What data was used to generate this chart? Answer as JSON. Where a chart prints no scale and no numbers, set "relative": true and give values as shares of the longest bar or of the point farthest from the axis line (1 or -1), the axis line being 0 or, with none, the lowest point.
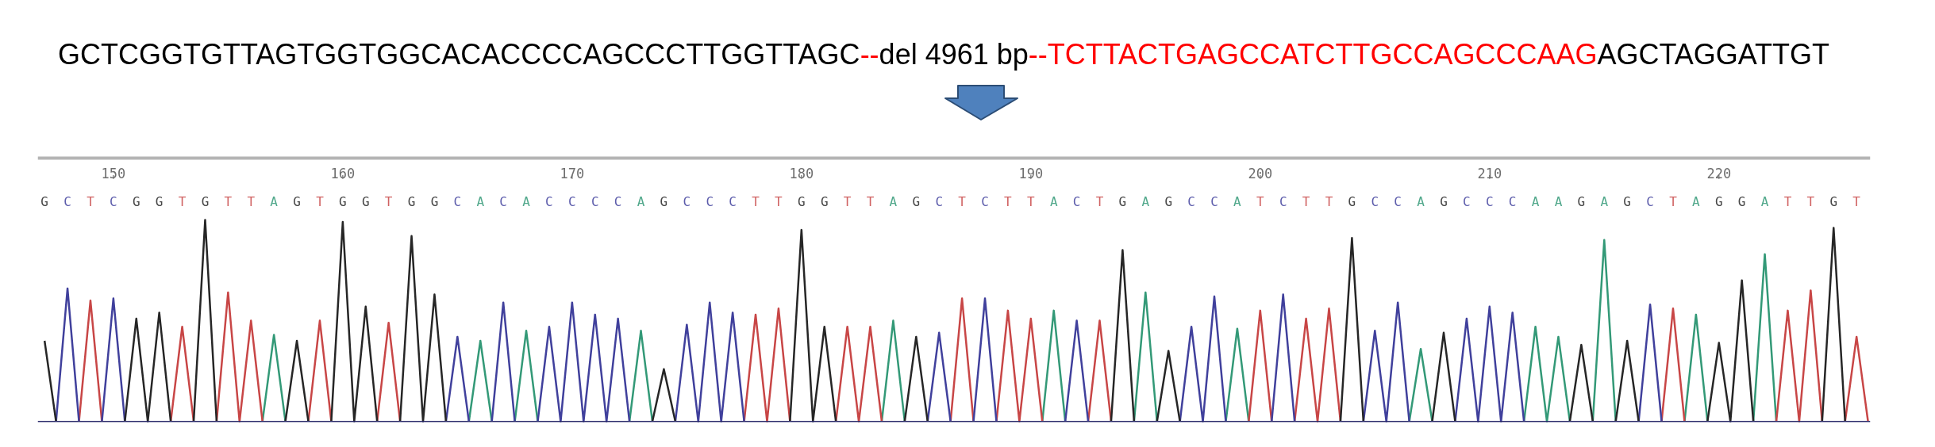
{
  "chart_data": {
    "type": "line",
    "relative": true,
    "annotations": [
      "GCTCGGTGTTAGTGGTGGCACACCCCAGCCCTTGGTTAGC",
      "--",
      "del 4961 bp",
      "--TCTTACTGAGCCATCTTGCCAGCCCAAG",
      "AGCTAGGATTGT"
    ],
    "categories": [
      "G",
      null,
      "C",
      null,
      "T",
      null,
      "C",
      null,
      "G",
      null,
      "G",
      null,
      "T",
      null,
      "G",
      null,
      "T",
      null,
      "T",
      null,
      "A",
      null,
      "G",
      null,
      "T",
      null,
      "G",
      null,
      "G",
      null,
      "T",
      null,
      "G",
      null,
      "G",
      null,
      "C",
      null,
      "A",
      null,
      "C",
      null,
      "A",
      null,
      "C",
      null,
      "C",
      null,
      "C",
      null,
      "C",
      null,
      "A",
      null,
      "G",
      null,
      "C",
      null,
      "C",
      null,
      "C",
      null,
      "T",
      null,
      "T",
      null,
      "G",
      null,
      "G",
      null,
      "T",
      null,
      "T",
      null,
      "A",
      null,
      "G",
      null,
      "C",
      null,
      "T",
      null,
      "C",
      null,
      "T",
      null,
      "T",
      null,
      "A",
      null,
      "C",
      null,
      "T",
      null,
      "G",
      null,
      "A",
      null,
      "G",
      null,
      "C",
      null,
      "C",
      null,
      "A",
      null,
      "T",
      null,
      "C",
      null,
      "T",
      null,
      "T",
      null,
      "G",
      null,
      "C",
      null,
      "C",
      null,
      "A",
      null,
      "G",
      null,
      "C",
      null,
      "C",
      null,
      "C",
      null,
      "A",
      null,
      "A",
      null,
      "G",
      null,
      "A",
      null,
      "G",
      null,
      "C",
      null,
      "T",
      null,
      "A",
      null,
      "G",
      null,
      "G",
      null,
      "A",
      null,
      "T",
      null,
      "T",
      null,
      "G",
      null,
      "T",
      null
    ],
    "x2lim": [
      146.7,
      226.6
    ],
    "x2ticks": [
      150,
      160,
      170,
      180,
      190,
      200,
      210,
      220
    ],
    "series": [
      {
        "color": "#339977",
        "values": [
          null,
          null,
          null,
          null,
          null,
          null,
          null,
          null,
          null,
          null,
          null,
          null,
          null,
          null,
          null,
          null,
          null,
          null,
          null,
          0,
          0.43,
          0,
          null,
          null,
          null,
          null,
          null,
          null,
          null,
          null,
          null,
          null,
          null,
          null,
          null,
          null,
          null,
          0,
          0.4,
          0,
          null,
          0,
          0.45,
          0,
          null,
          null,
          null,
          null,
          null,
          null,
          null,
          0,
          0.45,
          0,
          null,
          null,
          null,
          null,
          null,
          null,
          null,
          null,
          null,
          null,
          null,
          null,
          null,
          null,
          null,
          null,
          null,
          null,
          null,
          0,
          0.5,
          0,
          null,
          null,
          null,
          null,
          null,
          null,
          null,
          null,
          null,
          null,
          null,
          0,
          0.55,
          0,
          null,
          null,
          null,
          null,
          null,
          0,
          0.64,
          0,
          null,
          null,
          null,
          null,
          null,
          0,
          0.46,
          0,
          null,
          null,
          null,
          null,
          null,
          null,
          null,
          null,
          null,
          null,
          null,
          null,
          null,
          0,
          0.36,
          0,
          null,
          null,
          null,
          null,
          null,
          null,
          null,
          0,
          0.47,
          0,
          0.42,
          0,
          null,
          0,
          0.9,
          0,
          null,
          null,
          null,
          null,
          null,
          0,
          0.53,
          0,
          null,
          null,
          null,
          0,
          0.83,
          0,
          null,
          null,
          null,
          null,
          null,
          null,
          null,
          null
        ]
      },
      {
        "color": "#c84646",
        "values": [
          null,
          null,
          null,
          0,
          0.6,
          0,
          null,
          null,
          null,
          null,
          null,
          0,
          0.47,
          0,
          null,
          0,
          0.64,
          0,
          0.5,
          0,
          null,
          null,
          null,
          0,
          0.5,
          0,
          null,
          null,
          null,
          0,
          0.49,
          0,
          null,
          null,
          null,
          null,
          null,
          null,
          null,
          null,
          null,
          null,
          null,
          null,
          null,
          null,
          null,
          null,
          null,
          null,
          null,
          null,
          null,
          null,
          null,
          null,
          null,
          null,
          null,
          null,
          null,
          0,
          0.53,
          0,
          0.56,
          0,
          null,
          null,
          null,
          0,
          0.47,
          0,
          0.47,
          0,
          null,
          null,
          null,
          null,
          null,
          0,
          0.61,
          0,
          null,
          0,
          0.55,
          0,
          0.51,
          0,
          null,
          null,
          null,
          0,
          0.5,
          0,
          null,
          null,
          null,
          null,
          null,
          null,
          null,
          null,
          null,
          null,
          null,
          0,
          0.55,
          0,
          null,
          0,
          0.51,
          0,
          0.56,
          0,
          null,
          null,
          null,
          null,
          null,
          null,
          null,
          null,
          null,
          null,
          null,
          null,
          null,
          null,
          null,
          null,
          null,
          null,
          null,
          null,
          null,
          null,
          null,
          null,
          null,
          null,
          null,
          0,
          0.56,
          0,
          null,
          null,
          null,
          null,
          null,
          null,
          null,
          0,
          0.55,
          0,
          0.65,
          0,
          null,
          0,
          0.42,
          0
        ]
      },
      {
        "color": "#40409c",
        "values": [
          null,
          0,
          0.66,
          0,
          null,
          0,
          0.61,
          0,
          null,
          null,
          null,
          null,
          null,
          null,
          null,
          null,
          null,
          null,
          null,
          null,
          null,
          null,
          null,
          null,
          null,
          null,
          null,
          null,
          null,
          null,
          null,
          null,
          null,
          null,
          null,
          0,
          0.42,
          0,
          null,
          0,
          0.59,
          0,
          null,
          0,
          0.47,
          0,
          0.59,
          0,
          0.53,
          0,
          0.51,
          0,
          null,
          null,
          null,
          0,
          0.48,
          0,
          0.59,
          0,
          0.54,
          0,
          null,
          null,
          null,
          null,
          null,
          null,
          null,
          null,
          null,
          null,
          null,
          null,
          null,
          null,
          null,
          0,
          0.44,
          0,
          null,
          0,
          0.61,
          0,
          null,
          null,
          null,
          null,
          null,
          0,
          0.5,
          0,
          null,
          null,
          null,
          null,
          null,
          null,
          null,
          0,
          0.47,
          0,
          0.62,
          0,
          null,
          null,
          null,
          0,
          0.63,
          0,
          null,
          null,
          null,
          null,
          null,
          0,
          0.45,
          0,
          0.59,
          0,
          null,
          null,
          null,
          0,
          0.51,
          0,
          0.57,
          0,
          0.54,
          0,
          null,
          null,
          null,
          null,
          null,
          null,
          null,
          null,
          null,
          0,
          0.58,
          0,
          null,
          null,
          null,
          null,
          null,
          null,
          null,
          null,
          null,
          null,
          null,
          null,
          null,
          null,
          null,
          null,
          null,
          null
        ]
      },
      {
        "color": "#262626",
        "values": [
          0.4,
          0,
          null,
          null,
          null,
          null,
          null,
          0,
          0.51,
          0,
          0.54,
          0,
          null,
          0,
          1.0,
          0,
          null,
          null,
          null,
          null,
          null,
          0,
          0.4,
          0,
          null,
          0,
          0.99,
          0,
          0.57,
          0,
          null,
          0,
          0.92,
          0,
          0.63,
          0,
          null,
          null,
          null,
          null,
          null,
          null,
          null,
          null,
          null,
          null,
          null,
          null,
          null,
          null,
          null,
          null,
          null,
          0,
          0.26,
          0,
          null,
          null,
          null,
          null,
          null,
          null,
          null,
          null,
          null,
          0,
          0.95,
          0,
          0.47,
          0,
          null,
          null,
          null,
          null,
          null,
          0,
          0.42,
          0,
          null,
          null,
          null,
          null,
          null,
          null,
          null,
          null,
          null,
          null,
          null,
          null,
          null,
          null,
          null,
          0,
          0.85,
          0,
          null,
          0,
          0.35,
          0,
          null,
          null,
          null,
          null,
          null,
          null,
          null,
          null,
          null,
          null,
          null,
          null,
          null,
          0,
          0.91,
          0,
          null,
          null,
          null,
          null,
          null,
          0,
          0.44,
          0,
          null,
          null,
          null,
          null,
          null,
          null,
          null,
          null,
          null,
          0,
          0.38,
          0,
          null,
          0,
          0.4,
          0,
          null,
          null,
          null,
          null,
          null,
          0,
          0.39,
          0,
          0.7,
          0,
          null,
          null,
          null,
          null,
          null,
          0,
          0.96,
          0,
          null,
          null
        ]
      }
    ]
  }
}
